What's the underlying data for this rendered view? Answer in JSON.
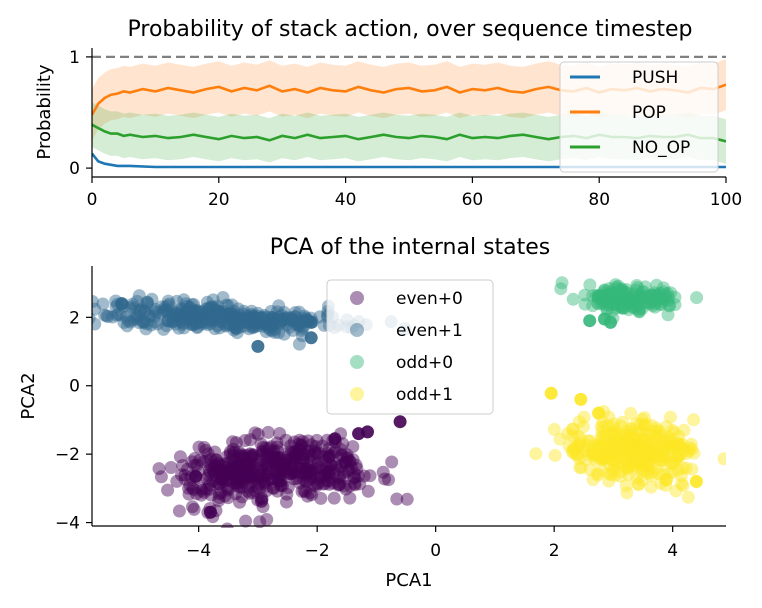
{
  "chart_data": [
    {
      "type": "line",
      "title": "Probability of stack action, over sequence timestep",
      "xlabel": "",
      "ylabel": "Probability",
      "xlim": [
        0,
        100
      ],
      "ylim": [
        -0.08,
        1.08
      ],
      "xticks": [
        0,
        20,
        40,
        60,
        80,
        100
      ],
      "yticks": [
        0,
        1
      ],
      "reference_line": {
        "y": 1,
        "style": "dashed",
        "color": "#808080"
      },
      "legend_position": "right",
      "series": [
        {
          "name": "PUSH",
          "color": "#1f77b4",
          "x": [
            0,
            1,
            2,
            3,
            4,
            6,
            10,
            20,
            40,
            60,
            80,
            100
          ],
          "y": [
            0.13,
            0.06,
            0.04,
            0.03,
            0.02,
            0.02,
            0.01,
            0.01,
            0.01,
            0.01,
            0.01,
            0.01
          ],
          "band": null
        },
        {
          "name": "POP",
          "color": "#ff7f0e",
          "x": [
            0,
            1,
            2,
            3,
            4,
            5,
            6,
            8,
            10,
            12,
            14,
            16,
            18,
            20,
            22,
            24,
            26,
            28,
            30,
            32,
            34,
            36,
            38,
            40,
            42,
            44,
            46,
            48,
            50,
            52,
            54,
            56,
            58,
            60,
            62,
            64,
            66,
            68,
            70,
            72,
            74,
            76,
            78,
            80,
            82,
            84,
            86,
            88,
            90,
            92,
            94,
            96,
            98,
            100
          ],
          "y": [
            0.48,
            0.58,
            0.63,
            0.66,
            0.67,
            0.69,
            0.68,
            0.71,
            0.69,
            0.72,
            0.7,
            0.68,
            0.71,
            0.73,
            0.69,
            0.72,
            0.7,
            0.74,
            0.69,
            0.71,
            0.68,
            0.72,
            0.7,
            0.69,
            0.73,
            0.7,
            0.68,
            0.71,
            0.72,
            0.69,
            0.7,
            0.73,
            0.68,
            0.71,
            0.7,
            0.72,
            0.69,
            0.68,
            0.71,
            0.73,
            0.7,
            0.69,
            0.72,
            0.68,
            0.71,
            0.7,
            0.72,
            0.69,
            0.71,
            0.7,
            0.68,
            0.72,
            0.71,
            0.75
          ],
          "band_halfwidth": 0.23
        },
        {
          "name": "NO_OP",
          "color": "#2ca02c",
          "x": [
            0,
            1,
            2,
            3,
            4,
            5,
            6,
            8,
            10,
            12,
            14,
            16,
            18,
            20,
            22,
            24,
            26,
            28,
            30,
            32,
            34,
            36,
            38,
            40,
            42,
            44,
            46,
            48,
            50,
            52,
            54,
            56,
            58,
            60,
            62,
            64,
            66,
            68,
            70,
            72,
            74,
            76,
            78,
            80,
            82,
            84,
            86,
            88,
            90,
            92,
            94,
            96,
            98,
            100
          ],
          "y": [
            0.39,
            0.36,
            0.33,
            0.31,
            0.31,
            0.29,
            0.3,
            0.28,
            0.29,
            0.27,
            0.28,
            0.3,
            0.28,
            0.26,
            0.29,
            0.27,
            0.28,
            0.25,
            0.29,
            0.27,
            0.3,
            0.27,
            0.28,
            0.29,
            0.26,
            0.28,
            0.3,
            0.28,
            0.27,
            0.29,
            0.28,
            0.26,
            0.3,
            0.27,
            0.28,
            0.27,
            0.29,
            0.3,
            0.28,
            0.26,
            0.28,
            0.29,
            0.27,
            0.3,
            0.28,
            0.28,
            0.27,
            0.29,
            0.28,
            0.28,
            0.3,
            0.27,
            0.27,
            0.24
          ],
          "band_halfwidth": 0.2
        }
      ]
    },
    {
      "type": "scatter",
      "title": "PCA of the internal states",
      "xlabel": "PCA1",
      "ylabel": "PCA2",
      "xlim": [
        -5.8,
        4.9
      ],
      "ylim": [
        -4.1,
        3.5
      ],
      "xticks": [
        -4,
        -2,
        0,
        2,
        4
      ],
      "yticks": [
        -4,
        -2,
        0,
        2
      ],
      "legend_position": "upper center",
      "series": [
        {
          "name": "even+0",
          "color": "#440154",
          "clusters": [
            {
              "cx": -3.3,
              "cy": -2.55,
              "sx": 0.55,
              "sy": 0.45,
              "tilt": 0.55,
              "n": 260
            },
            {
              "cx": -2.1,
              "cy": -2.4,
              "sx": 0.4,
              "sy": 0.55,
              "tilt": 0.9,
              "n": 200
            }
          ],
          "outliers": [
            [
              -0.6,
              -1.05
            ],
            [
              -1.15,
              -1.35
            ],
            [
              -1.3,
              -1.4
            ],
            [
              -1.7,
              -1.55
            ],
            [
              -4.05,
              -2.65
            ],
            [
              -3.8,
              -3.7
            ]
          ]
        },
        {
          "name": "even+1",
          "color": "#31688e",
          "clusters": [
            {
              "cx": -3.7,
              "cy": 2.0,
              "sx": 1.0,
              "sy": 0.2,
              "tilt": -0.1,
              "n": 380
            }
          ],
          "outliers": [
            [
              -3.0,
              1.15
            ],
            [
              -2.1,
              1.4
            ],
            [
              -2.1,
              1.85
            ],
            [
              -5.3,
              2.4
            ]
          ]
        },
        {
          "name": "odd+0",
          "color": "#35b779",
          "clusters": [
            {
              "cx": 3.25,
              "cy": 2.55,
              "sx": 0.4,
              "sy": 0.2,
              "tilt": 0.0,
              "n": 160
            }
          ],
          "outliers": [
            [
              2.85,
              1.95
            ],
            [
              2.6,
              1.9
            ],
            [
              2.95,
              1.85
            ]
          ]
        },
        {
          "name": "odd+1",
          "color": "#fde725",
          "clusters": [
            {
              "cx": 3.35,
              "cy": -1.9,
              "sx": 0.55,
              "sy": 0.4,
              "tilt": -0.45,
              "n": 360
            }
          ],
          "outliers": [
            [
              1.95,
              -0.22
            ],
            [
              2.45,
              -0.4
            ],
            [
              2.75,
              -0.8
            ],
            [
              4.4,
              -2.8
            ],
            [
              4.1,
              -1.7
            ]
          ]
        }
      ]
    }
  ]
}
